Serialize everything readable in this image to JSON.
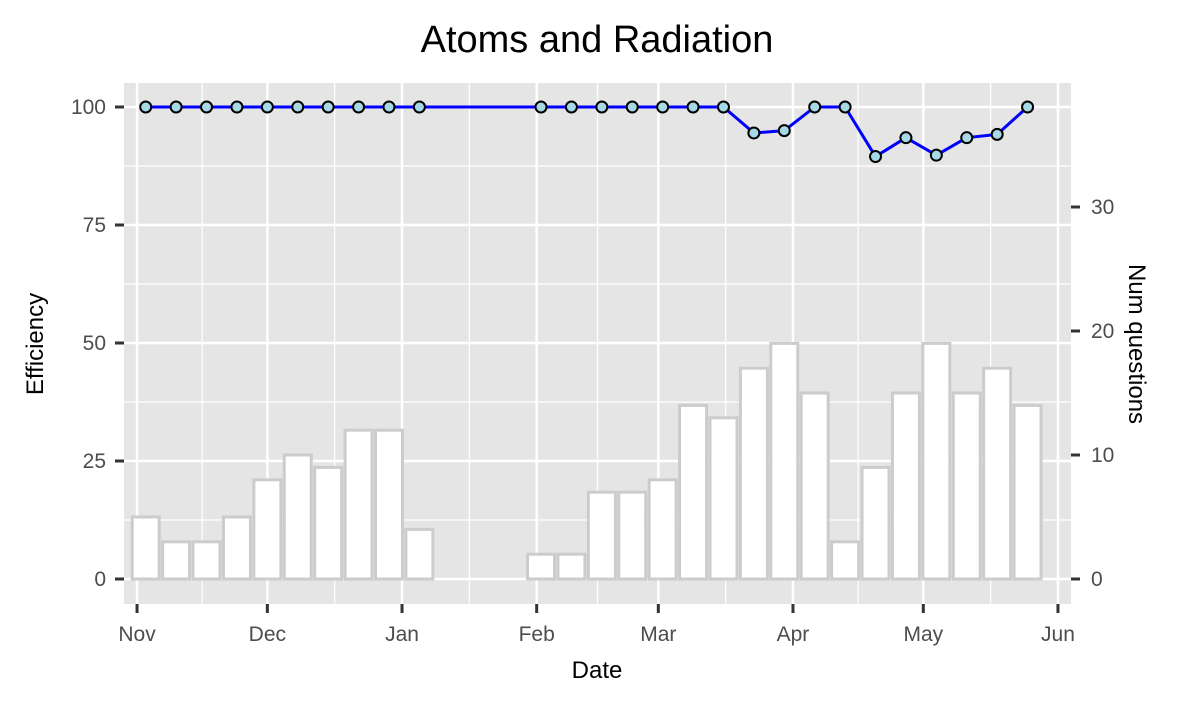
{
  "chart_data": {
    "type": "bar+line",
    "title": "Atoms and Radiation",
    "xlabel": "Date",
    "ylabel_left": "Efficiency",
    "ylabel_right": "Num questions",
    "x_domain": [
      "2022-10-29",
      "2023-06-04"
    ],
    "x_ticks": [
      {
        "date": "2022-11-01",
        "label": "Nov"
      },
      {
        "date": "2022-12-01",
        "label": "Dec"
      },
      {
        "date": "2023-01-01",
        "label": "Jan"
      },
      {
        "date": "2023-02-01",
        "label": "Feb"
      },
      {
        "date": "2023-03-01",
        "label": "Mar"
      },
      {
        "date": "2023-04-01",
        "label": "Apr"
      },
      {
        "date": "2023-05-01",
        "label": "May"
      },
      {
        "date": "2023-06-01",
        "label": "Jun"
      }
    ],
    "y_left": {
      "ticks": [
        0,
        25,
        50,
        75,
        100
      ]
    },
    "y_right": {
      "ticks": [
        0,
        10,
        20,
        30
      ]
    },
    "grid": true,
    "colors": {
      "panel": "#e5e5e5",
      "grid": "#ffffff",
      "bar_fill": "#ffffff",
      "bar_stroke": "#cccccc",
      "line": "#0000ff",
      "point_fill": "#a6d8e6",
      "point_stroke": "#000000"
    },
    "bars": [
      {
        "date": "2022-11-03",
        "count": 5
      },
      {
        "date": "2022-11-10",
        "count": 3
      },
      {
        "date": "2022-11-17",
        "count": 3
      },
      {
        "date": "2022-11-24",
        "count": 5
      },
      {
        "date": "2022-12-01",
        "count": 8
      },
      {
        "date": "2022-12-08",
        "count": 10
      },
      {
        "date": "2022-12-15",
        "count": 9
      },
      {
        "date": "2022-12-22",
        "count": 12
      },
      {
        "date": "2022-12-29",
        "count": 12
      },
      {
        "date": "2023-01-05",
        "count": 4
      },
      {
        "date": "2023-02-02",
        "count": 2
      },
      {
        "date": "2023-02-09",
        "count": 2
      },
      {
        "date": "2023-02-16",
        "count": 7
      },
      {
        "date": "2023-02-23",
        "count": 7
      },
      {
        "date": "2023-03-02",
        "count": 8
      },
      {
        "date": "2023-03-09",
        "count": 14
      },
      {
        "date": "2023-03-16",
        "count": 13
      },
      {
        "date": "2023-03-23",
        "count": 17
      },
      {
        "date": "2023-03-30",
        "count": 19
      },
      {
        "date": "2023-04-06",
        "count": 15
      },
      {
        "date": "2023-04-13",
        "count": 3
      },
      {
        "date": "2023-04-20",
        "count": 9
      },
      {
        "date": "2023-04-27",
        "count": 15
      },
      {
        "date": "2023-05-04",
        "count": 19
      },
      {
        "date": "2023-05-11",
        "count": 15
      },
      {
        "date": "2023-05-18",
        "count": 17
      },
      {
        "date": "2023-05-25",
        "count": 14
      }
    ],
    "efficiency": [
      {
        "date": "2022-11-03",
        "value": 100
      },
      {
        "date": "2022-11-10",
        "value": 100
      },
      {
        "date": "2022-11-17",
        "value": 100
      },
      {
        "date": "2022-11-24",
        "value": 100
      },
      {
        "date": "2022-12-01",
        "value": 100
      },
      {
        "date": "2022-12-08",
        "value": 100
      },
      {
        "date": "2022-12-15",
        "value": 100
      },
      {
        "date": "2022-12-22",
        "value": 100
      },
      {
        "date": "2022-12-29",
        "value": 100
      },
      {
        "date": "2023-01-05",
        "value": 100
      },
      {
        "date": "2023-02-02",
        "value": 100
      },
      {
        "date": "2023-02-09",
        "value": 100
      },
      {
        "date": "2023-02-16",
        "value": 100
      },
      {
        "date": "2023-02-23",
        "value": 100
      },
      {
        "date": "2023-03-02",
        "value": 100
      },
      {
        "date": "2023-03-09",
        "value": 100
      },
      {
        "date": "2023-03-16",
        "value": 100
      },
      {
        "date": "2023-03-23",
        "value": 94.5
      },
      {
        "date": "2023-03-30",
        "value": 95
      },
      {
        "date": "2023-04-06",
        "value": 100
      },
      {
        "date": "2023-04-13",
        "value": 100
      },
      {
        "date": "2023-04-20",
        "value": 89.5
      },
      {
        "date": "2023-04-27",
        "value": 93.5
      },
      {
        "date": "2023-05-04",
        "value": 89.8
      },
      {
        "date": "2023-05-11",
        "value": 93.5
      },
      {
        "date": "2023-05-18",
        "value": 94.2
      },
      {
        "date": "2023-05-25",
        "value": 100
      }
    ]
  }
}
